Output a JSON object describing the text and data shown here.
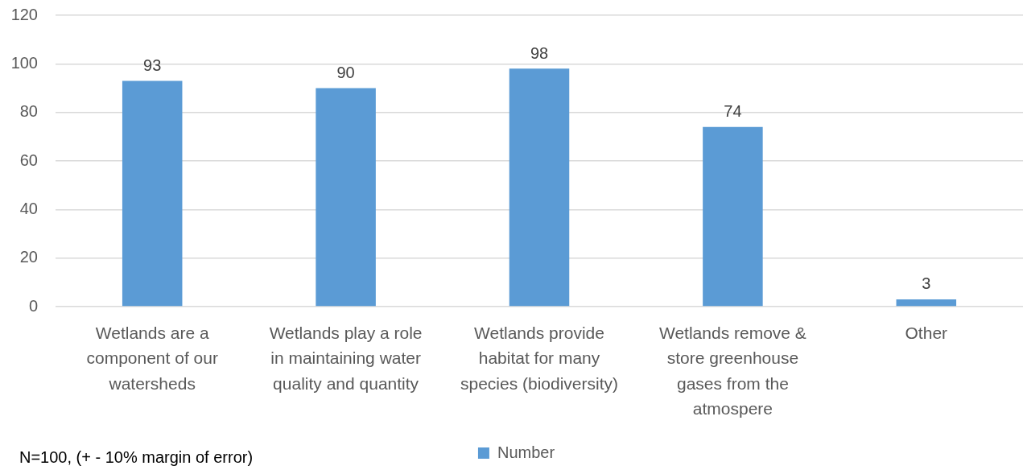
{
  "chart_data": {
    "type": "bar",
    "categories": [
      "Wetlands are a component of our watersheds",
      "Wetlands play a role in maintaining water quality and quantity",
      "Wetlands provide habitat for many species (biodiversity)",
      "Wetlands remove & store greenhouse gases from the atmospere",
      "Other"
    ],
    "series": [
      {
        "name": "Number",
        "color": "#5b9bd5",
        "values": [
          93,
          90,
          98,
          74,
          3
        ]
      }
    ],
    "ylim": [
      0,
      120
    ],
    "yticks": [
      0,
      20,
      40,
      60,
      80,
      100,
      120
    ],
    "grid": "y",
    "legend": "bottom",
    "data_labels": true,
    "annotations": [
      "N=100, (+ - 10% margin of error)"
    ]
  }
}
